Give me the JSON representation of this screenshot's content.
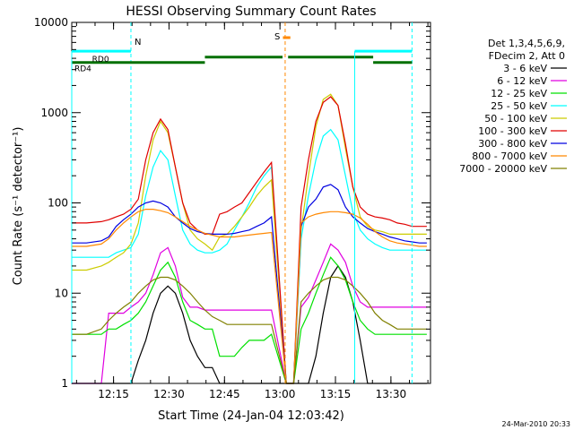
{
  "chart_data": {
    "type": "line",
    "title": "HESSI Observing Summary Count Rates",
    "xlabel": "Start Time (24-Jan-04 12:03:42)",
    "ylabel": "Count Rate (s⁻¹ detector⁻¹)",
    "yscale": "log",
    "ylim": [
      1,
      10000
    ],
    "xlim_minutes_after_start": [
      0,
      97
    ],
    "x_tick_labels": [
      "12:15",
      "12:30",
      "12:45",
      "13:00",
      "13:15",
      "13:30"
    ],
    "x_tick_minutes": [
      11.3,
      26.3,
      41.3,
      56.3,
      71.3,
      86.3
    ],
    "y_tick_labels": [
      "1",
      "10",
      "100",
      "1000",
      "10000"
    ],
    "y_tick_values": [
      1,
      10,
      100,
      1000,
      10000
    ],
    "grid": false,
    "legend_position": "right",
    "legend_header": [
      "Det 1,3,4,5,6,9,",
      "FDecim 2, Att 0"
    ],
    "footer_date": "24-Mar-2010 20:33",
    "x": [
      0,
      4,
      8,
      10,
      12,
      14,
      16,
      18,
      20,
      22,
      24,
      26,
      28,
      30,
      32,
      34,
      36,
      38,
      40,
      42,
      44,
      46,
      48,
      50,
      52,
      54,
      58,
      60,
      62,
      64,
      66,
      68,
      70,
      72,
      74,
      76,
      78,
      80,
      82,
      84,
      86,
      88,
      90,
      92,
      94,
      96
    ],
    "series": [
      {
        "name": "3 - 6 keV",
        "color": "#000000",
        "values": [
          1,
          1,
          1,
          1,
          1,
          1,
          1,
          1.8,
          3,
          6,
          10,
          12,
          10,
          6,
          3,
          2,
          1.5,
          1.5,
          1,
          1,
          1,
          1,
          1,
          1,
          1,
          1,
          1,
          1,
          1,
          1,
          2,
          6,
          15,
          20,
          15,
          8,
          3,
          1,
          1,
          1,
          1,
          1,
          1,
          1,
          1,
          1
        ]
      },
      {
        "name": "6 - 12 keV",
        "color": "#e000e0",
        "values": [
          1,
          1,
          1,
          6,
          6,
          6,
          7,
          8,
          10,
          16,
          28,
          32,
          20,
          9,
          7,
          7,
          6.5,
          6.5,
          6.5,
          6.5,
          6.5,
          6.5,
          6.5,
          6.5,
          6.5,
          6.5,
          1,
          1,
          7,
          9,
          14,
          22,
          35,
          30,
          22,
          12,
          8,
          7,
          7,
          7,
          7,
          7,
          7,
          7,
          7,
          7
        ]
      },
      {
        "name": "12 - 25 keV",
        "color": "#00e000",
        "values": [
          3.5,
          3.5,
          3.5,
          4,
          4,
          4.5,
          5,
          6,
          8,
          12,
          18,
          22,
          15,
          8,
          5,
          4.5,
          4,
          4,
          2,
          2,
          2,
          2.5,
          3,
          3,
          3,
          3.5,
          1,
          1,
          4,
          6,
          10,
          16,
          25,
          20,
          14,
          8,
          5,
          4,
          3.5,
          3.5,
          3.5,
          3.5,
          3.5,
          3.5,
          3.5,
          3.5
        ]
      },
      {
        "name": "25 - 50 keV",
        "color": "#00ffff",
        "values": [
          25,
          25,
          25,
          25,
          28,
          30,
          32,
          45,
          120,
          250,
          380,
          300,
          120,
          50,
          35,
          30,
          28,
          28,
          30,
          35,
          50,
          70,
          100,
          150,
          200,
          250,
          1,
          1,
          40,
          120,
          300,
          550,
          650,
          500,
          200,
          80,
          50,
          40,
          35,
          32,
          30,
          30,
          30,
          30,
          30,
          30
        ]
      },
      {
        "name": "50 - 100 keV",
        "color": "#cccc00",
        "values": [
          18,
          18,
          20,
          22,
          25,
          28,
          35,
          60,
          200,
          500,
          800,
          600,
          250,
          100,
          50,
          40,
          35,
          30,
          42,
          45,
          55,
          70,
          90,
          120,
          150,
          180,
          1,
          1,
          50,
          200,
          700,
          1400,
          1600,
          1200,
          400,
          150,
          70,
          55,
          50,
          48,
          45,
          45,
          45,
          45,
          45,
          45
        ]
      },
      {
        "name": "100 - 300 keV",
        "color": "#e00000",
        "values": [
          60,
          60,
          62,
          65,
          70,
          75,
          85,
          110,
          300,
          600,
          850,
          650,
          250,
          100,
          60,
          50,
          45,
          45,
          75,
          80,
          90,
          100,
          130,
          170,
          220,
          280,
          1,
          1,
          90,
          300,
          800,
          1300,
          1500,
          1200,
          450,
          150,
          90,
          75,
          70,
          68,
          65,
          60,
          58,
          55,
          55,
          55
        ]
      },
      {
        "name": "300 - 800 keV",
        "color": "#0000e0",
        "values": [
          36,
          36,
          38,
          42,
          55,
          65,
          75,
          90,
          100,
          105,
          100,
          90,
          70,
          60,
          52,
          48,
          46,
          45,
          45,
          45,
          46,
          48,
          50,
          55,
          60,
          70,
          1,
          1,
          55,
          90,
          110,
          150,
          160,
          140,
          90,
          70,
          60,
          52,
          48,
          45,
          42,
          40,
          38,
          37,
          36,
          36
        ]
      },
      {
        "name": "800 - 7000 keV",
        "color": "#ff8800",
        "values": [
          33,
          33,
          35,
          40,
          50,
          60,
          70,
          80,
          85,
          85,
          82,
          78,
          70,
          62,
          55,
          50,
          46,
          44,
          42,
          42,
          42,
          43,
          44,
          45,
          46,
          47,
          1,
          1,
          60,
          70,
          75,
          78,
          80,
          80,
          78,
          75,
          68,
          58,
          48,
          42,
          38,
          36,
          35,
          34,
          33,
          33
        ]
      },
      {
        "name": "7000 - 20000 keV",
        "color": "#808000",
        "values": [
          3.5,
          3.5,
          4,
          5,
          6,
          7,
          8,
          10,
          12,
          14,
          15,
          15,
          14,
          12,
          10,
          8,
          6.5,
          5.5,
          5,
          4.5,
          4.5,
          4.5,
          4.5,
          4.5,
          4.5,
          4.5,
          1,
          1,
          8,
          10,
          12,
          14,
          15,
          15,
          14,
          12,
          10,
          8,
          6,
          5,
          4.5,
          4,
          4,
          4,
          4,
          4
        ]
      }
    ],
    "annotations": {
      "RD0": {
        "label": "RD0",
        "y": 4800,
        "x_ranges": [
          [
            0,
            16
          ]
        ],
        "color": "#00ffff"
      },
      "RD4": {
        "label": "RD4",
        "y": 3600,
        "x_ranges": [
          [
            0,
            36
          ],
          [
            36,
            57
          ]
        ],
        "color": "#007000"
      },
      "N": {
        "label": "N",
        "x": 16,
        "color": "#00ffff"
      },
      "S": {
        "label": "S",
        "x": 57.7,
        "color": "#ff8800"
      },
      "rd0_right": {
        "x_ranges": [
          [
            76.5,
            92
          ]
        ],
        "y": 4800
      },
      "rd4_right": {
        "x_ranges": [
          [
            58.5,
            81.5
          ],
          [
            81.5,
            92
          ]
        ],
        "y": 3600
      }
    }
  }
}
